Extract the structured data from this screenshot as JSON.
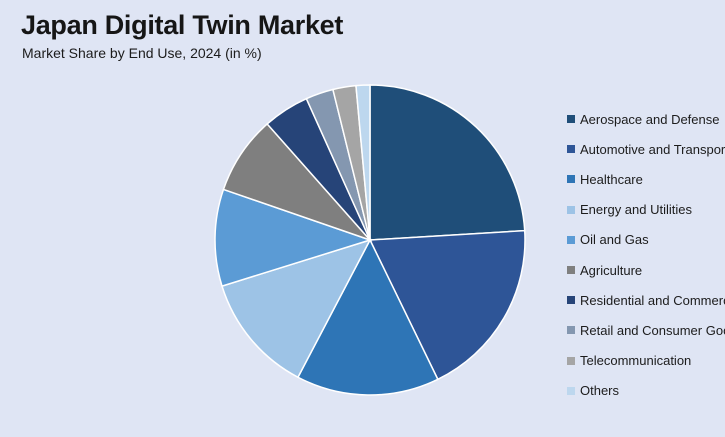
{
  "chart_data": {
    "type": "pie",
    "title": "Japan Digital Twin Market",
    "subtitle": "Market Share by End Use, 2024 (in %)",
    "legend_position": "right",
    "slices": [
      {
        "label": "Aerospace and Defense",
        "value": 25.0,
        "color": "#1f4e79"
      },
      {
        "label": "Automotive and Transportation",
        "value": 19.5,
        "color": "#2e5597"
      },
      {
        "label": "Healthcare",
        "value": 15.5,
        "color": "#2e75b6"
      },
      {
        "label": "Energy and Utilities",
        "value": 13.0,
        "color": "#9dc3e6"
      },
      {
        "label": "Oil and Gas",
        "value": 10.5,
        "color": "#5b9bd5"
      },
      {
        "label": "Agriculture",
        "value": 8.5,
        "color": "#7f7f7f"
      },
      {
        "label": "Residential and Commercial",
        "value": 5.0,
        "color": "#264478"
      },
      {
        "label": "Retail and Consumer Goods",
        "value": 3.0,
        "color": "#8497b0"
      },
      {
        "label": "Telecommunication",
        "value": 2.5,
        "color": "#a5a5a5"
      },
      {
        "label": "Others",
        "value": 1.5,
        "color": "#bdd7ee"
      }
    ]
  }
}
